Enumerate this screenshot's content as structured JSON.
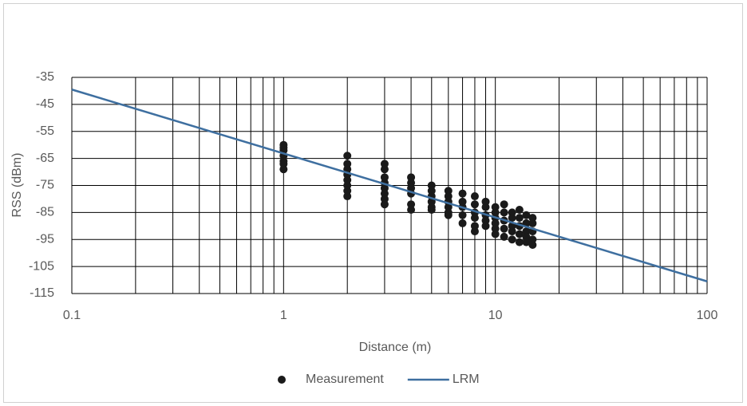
{
  "chart_data": {
    "type": "scatter",
    "x_label": "Distance (m)",
    "y_label": "RSS (dBm)",
    "x_log": true,
    "xlim": [
      0.1,
      100
    ],
    "xticks": [
      0.1,
      1,
      10,
      100
    ],
    "ylim": [
      -115,
      -35
    ],
    "yticks": [
      -35,
      -45,
      -55,
      -65,
      -75,
      -85,
      -95,
      -105,
      -115
    ],
    "grid": true,
    "minor_grid": true,
    "legend": "bottom",
    "series": [
      {
        "name": "Measurement",
        "style": "markers",
        "color": "#1a1a1a",
        "x": [
          1,
          1,
          1,
          1,
          1,
          1,
          1,
          2,
          2,
          2,
          2,
          2,
          2,
          2,
          2,
          3,
          3,
          3,
          3,
          3,
          3,
          3,
          3,
          4,
          4,
          4,
          4,
          4,
          4,
          5,
          5,
          5,
          5,
          5,
          5,
          6,
          6,
          6,
          6,
          6,
          6,
          7,
          7,
          7,
          7,
          7,
          8,
          8,
          8,
          8,
          8,
          8,
          9,
          9,
          9,
          9,
          9,
          10,
          10,
          10,
          10,
          10,
          10,
          11,
          11,
          11,
          11,
          11,
          12,
          12,
          12,
          12,
          12,
          13,
          13,
          13,
          13,
          13,
          14,
          14,
          14,
          14,
          14,
          15,
          15,
          15,
          15,
          15
        ],
        "values": [
          -60,
          -61,
          -62,
          -64,
          -66,
          -67,
          -69,
          -64,
          -67,
          -69,
          -71,
          -73,
          -75,
          -77,
          -79,
          -67,
          -69,
          -72,
          -74,
          -76,
          -78,
          -80,
          -82,
          -72,
          -74,
          -76,
          -78,
          -82,
          -84,
          -75,
          -77,
          -79,
          -81,
          -83,
          -84,
          -77,
          -79,
          -81,
          -83,
          -85,
          -86,
          -78,
          -81,
          -83,
          -86,
          -89,
          -79,
          -82,
          -85,
          -87,
          -90,
          -92,
          -81,
          -83,
          -86,
          -88,
          -90,
          -83,
          -85,
          -87,
          -89,
          -91,
          -93,
          -82,
          -85,
          -88,
          -91,
          -94,
          -85,
          -87,
          -90,
          -92,
          -95,
          -84,
          -87,
          -90,
          -93,
          -96,
          -86,
          -89,
          -92,
          -94,
          -96,
          -87,
          -89,
          -92,
          -95,
          -97
        ]
      },
      {
        "name": "LRM",
        "style": "line",
        "color": "#3e6fa0",
        "x": [
          0.1,
          100
        ],
        "values": [
          -39.5,
          -110.5
        ]
      }
    ]
  }
}
